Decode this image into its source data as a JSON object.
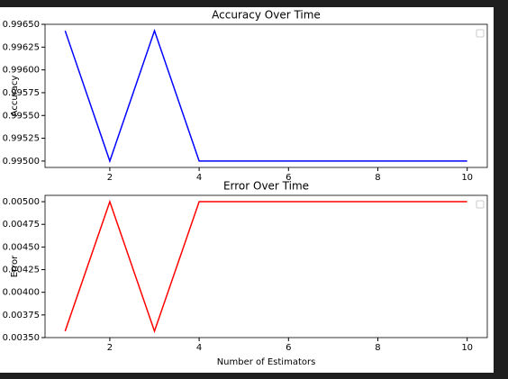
{
  "chart_data": [
    {
      "type": "line",
      "title": "Accuracy Over Time",
      "ylabel": "Accuracy",
      "x": [
        1,
        2,
        3,
        4,
        5,
        6,
        7,
        8,
        9,
        10
      ],
      "series": [
        {
          "color": "#0000ff",
          "values": [
            0.996429,
            0.995,
            0.996429,
            0.995,
            0.995,
            0.995,
            0.995,
            0.995,
            0.995,
            0.995
          ]
        }
      ],
      "xlim": [
        0.55,
        10.45
      ],
      "xticks": [
        2,
        4,
        6,
        8,
        10
      ],
      "ylim": [
        0.99493,
        0.9965
      ],
      "yticks": [
        {
          "value": 0.995,
          "label": "0.99500"
        },
        0.99525,
        {
          "value": 0.9955,
          "label": "0.99550"
        },
        0.99575,
        {
          "value": 0.996,
          "label": "0.99600"
        },
        0.99625,
        {
          "value": 0.9965,
          "label": "0.99650"
        }
      ]
    },
    {
      "type": "line",
      "title": "Error Over Time",
      "ylabel": "Error",
      "xlabel": "Number of Estimators",
      "x": [
        1,
        2,
        3,
        4,
        5,
        6,
        7,
        8,
        9,
        10
      ],
      "series": [
        {
          "color": "#ff0000",
          "values": [
            0.003571,
            0.005,
            0.003571,
            0.005,
            0.005,
            0.005,
            0.005,
            0.005,
            0.005,
            0.005
          ]
        }
      ],
      "xlim": [
        0.55,
        10.45
      ],
      "xticks": [
        2,
        4,
        6,
        8,
        10
      ],
      "ylim": [
        0.0035,
        0.00507
      ],
      "yticks": [
        {
          "value": 0.0035,
          "label": "0.00350"
        },
        0.00375,
        {
          "value": 0.004,
          "label": "0.00400"
        },
        0.00425,
        {
          "value": 0.0045,
          "label": "0.00450"
        },
        0.00475,
        {
          "value": 0.005,
          "label": "0.00500"
        }
      ]
    }
  ]
}
